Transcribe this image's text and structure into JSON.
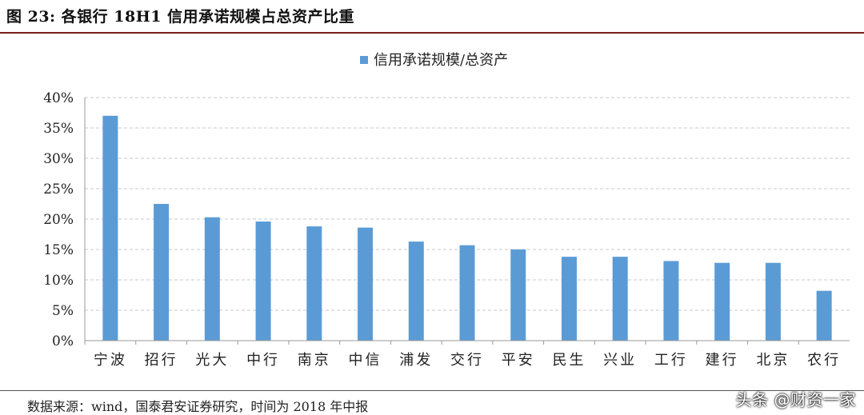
{
  "figure": {
    "title": "图 23:   各银行 18H1 信用承诺规模占总资产比重",
    "source": "数据来源：wind，国泰君安证券研究，时间为 2018 年中报",
    "watermark": "头条 @财资一家"
  },
  "chart_data": {
    "type": "bar",
    "categories": [
      "宁波",
      "招行",
      "光大",
      "中行",
      "南京",
      "中信",
      "浦发",
      "交行",
      "平安",
      "民生",
      "兴业",
      "工行",
      "建行",
      "北京",
      "农行"
    ],
    "series": [
      {
        "name": "信用承诺规模/总资产",
        "values": [
          37.0,
          22.5,
          20.3,
          19.6,
          18.8,
          18.6,
          16.3,
          15.7,
          15.0,
          13.8,
          13.8,
          13.1,
          12.8,
          12.8,
          8.2
        ],
        "color": "#5b9bd5"
      }
    ],
    "yticks": [
      "0%",
      "5%",
      "10%",
      "15%",
      "20%",
      "25%",
      "30%",
      "35%",
      "40%"
    ],
    "ylim": [
      0,
      40
    ],
    "unit": "%",
    "grid": true,
    "legend_position": "top-center"
  }
}
